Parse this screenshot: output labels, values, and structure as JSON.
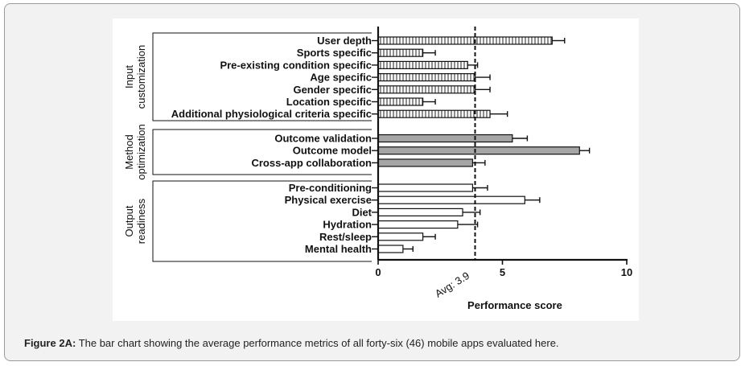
{
  "caption": {
    "label": "Figure 2A:",
    "text": "The bar chart showing the average performance metrics of all forty-six (46) mobile apps evaluated here."
  },
  "chart_data": {
    "type": "bar",
    "orientation": "horizontal",
    "xlabel": "Performance score",
    "xlim": [
      0,
      10
    ],
    "xticks": [
      0,
      5,
      10
    ],
    "reference_line": {
      "value": 3.9,
      "label": "Avg: 3.9"
    },
    "colors": {
      "hatched": "#ffffff",
      "grey": "#a6a6a6",
      "white": "#ffffff",
      "stroke": "#111111"
    },
    "groups": [
      {
        "name": "Input customization",
        "fill": "hatched",
        "categories": [
          "User depth",
          "Sports specific",
          "Pre-existing condition specific",
          "Age specific",
          "Gender specific",
          "Location specific",
          "Additional physiological criteria specific"
        ],
        "values": [
          7.0,
          1.8,
          3.6,
          3.9,
          3.9,
          1.8,
          4.5
        ],
        "errors": [
          0.5,
          0.5,
          0.4,
          0.6,
          0.6,
          0.5,
          0.7
        ]
      },
      {
        "name": "Method optimization",
        "fill": "grey",
        "categories": [
          "Outcome validation",
          "Outcome model",
          "Cross-app collaboration"
        ],
        "values": [
          5.4,
          8.1,
          3.8
        ],
        "errors": [
          0.6,
          0.4,
          0.5
        ]
      },
      {
        "name": "Output readiness",
        "fill": "white",
        "categories": [
          "Pre-conditioning",
          "Physical exercise",
          "Diet",
          "Hydration",
          "Rest/sleep",
          "Mental health"
        ],
        "values": [
          3.8,
          5.9,
          3.4,
          3.2,
          1.8,
          1.0
        ],
        "errors": [
          0.6,
          0.6,
          0.7,
          0.8,
          0.5,
          0.4
        ]
      }
    ]
  }
}
